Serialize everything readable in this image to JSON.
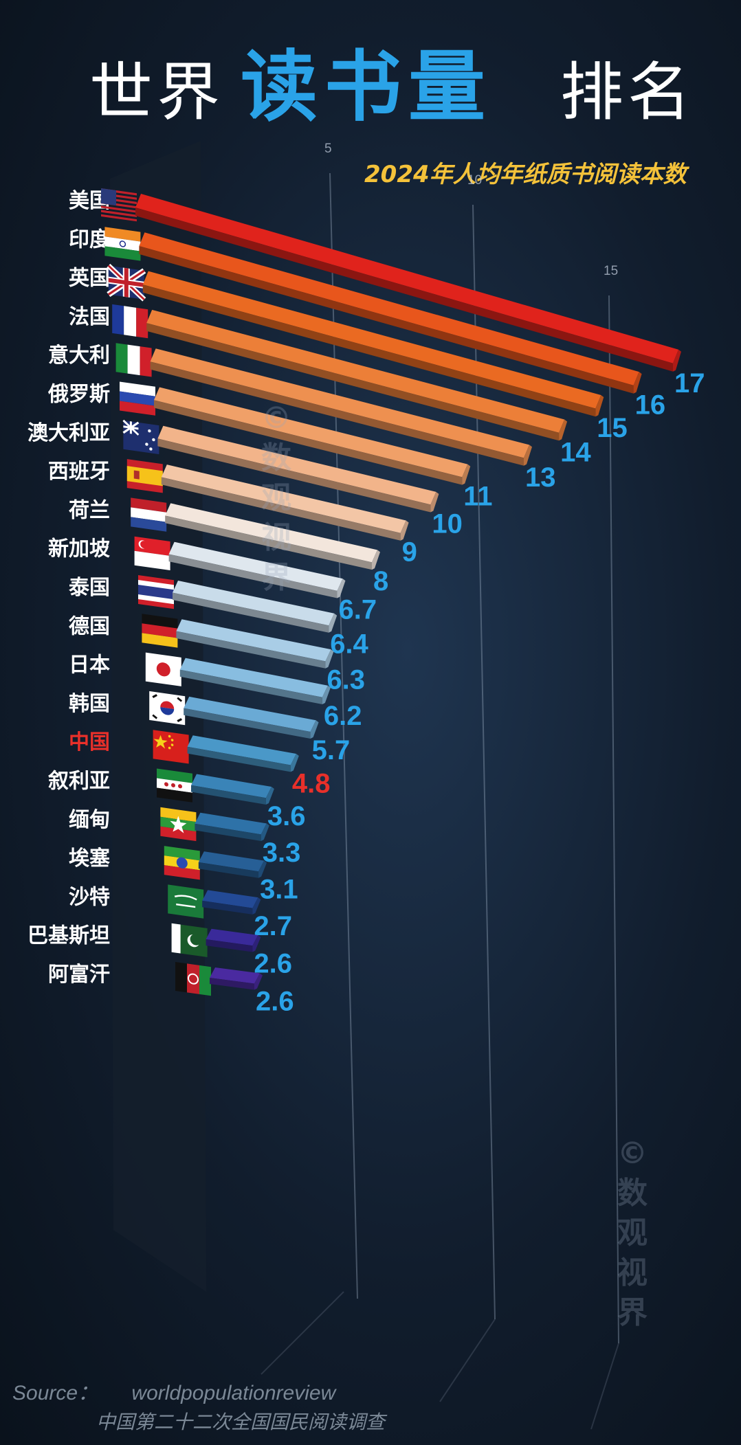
{
  "title": {
    "part1": "世界",
    "highlight": "读书量",
    "part2": "排名"
  },
  "subtitle": "2024年人均年纸质书阅读本数",
  "watermark": {
    "symbol": "©",
    "line1": "数",
    "line2": "观",
    "line3": "视",
    "line4": "界"
  },
  "source": {
    "label": "Source：",
    "site": "worldpopulationreview",
    "note": "中国第二十二次全国国民阅读调查"
  },
  "colors": {
    "accent": "#2aa3e8",
    "highlight_label": "#e8302a",
    "value_label": "#2aa3e8",
    "subtitle": "#f4c23a"
  },
  "chart_data": {
    "type": "bar",
    "orientation": "horizontal",
    "title": "世界读书量排名",
    "subtitle": "2024年人均年纸质书阅读本数",
    "xticks": [
      "5",
      "10",
      "15"
    ],
    "xlim": [
      0,
      17
    ],
    "highlight": "中国",
    "categories": [
      "美国",
      "印度",
      "英国",
      "法国",
      "意大利",
      "俄罗斯",
      "澳大利亚",
      "西班牙",
      "荷兰",
      "新加坡",
      "泰国",
      "德国",
      "日本",
      "韩国",
      "中国",
      "叙利亚",
      "缅甸",
      "埃塞",
      "沙特",
      "巴基斯坦",
      "阿富汗"
    ],
    "values": [
      17,
      16,
      15,
      14,
      13,
      11,
      10,
      9,
      8,
      6.7,
      6.4,
      6.3,
      6.2,
      5.7,
      4.8,
      3.6,
      3.3,
      3.1,
      2.7,
      2.6,
      2.6
    ],
    "value_labels": [
      "17",
      "16",
      "15",
      "14",
      "13",
      "11",
      "10",
      "9",
      "8",
      "6.7",
      "6.4",
      "6.3",
      "6.2",
      "5.7",
      "4.8",
      "3.6",
      "3.3",
      "3.1",
      "2.7",
      "2.6",
      "2.6"
    ],
    "bar_colors": [
      "#e0231c",
      "#e8561c",
      "#ea6a22",
      "#ec7f38",
      "#ee9050",
      "#f0a068",
      "#f2b48a",
      "#f3c6a6",
      "#f3e6dc",
      "#dfe7ee",
      "#c9dcea",
      "#a9cde6",
      "#88bde0",
      "#6aaad5",
      "#4a98c8",
      "#3a84b8",
      "#2e72a8",
      "#275f96",
      "#234a96",
      "#3a2a9a",
      "#4a2aa0"
    ],
    "flag_icons": [
      "us-flag-icon",
      "india-flag-icon",
      "uk-flag-icon",
      "france-flag-icon",
      "italy-flag-icon",
      "russia-flag-icon",
      "australia-flag-icon",
      "spain-flag-icon",
      "netherlands-flag-icon",
      "singapore-flag-icon",
      "thailand-flag-icon",
      "germany-flag-icon",
      "japan-flag-icon",
      "korea-flag-icon",
      "china-flag-icon",
      "syria-flag-icon",
      "myanmar-flag-icon",
      "ethiopia-flag-icon",
      "saudi-flag-icon",
      "pakistan-flag-icon",
      "afghanistan-flag-icon"
    ]
  }
}
